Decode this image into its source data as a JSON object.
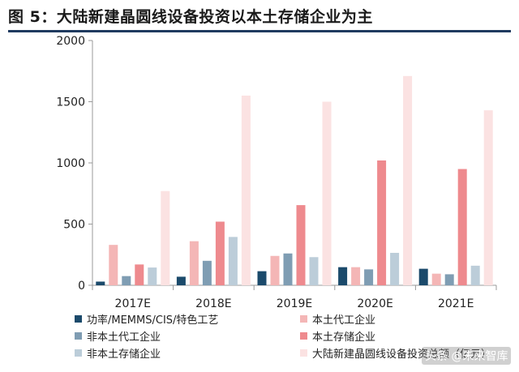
{
  "title": "图 5：大陆新建晶圆线设备投资以本土存储企业为主",
  "watermark": "头条 @未来智库",
  "chart_data": {
    "type": "bar",
    "categories": [
      "2017E",
      "2018E",
      "2019E",
      "2020E",
      "2021E"
    ],
    "ylim": [
      0,
      2000
    ],
    "yticks": [
      0,
      500,
      1000,
      1500,
      2000
    ],
    "grid": false,
    "legend_position": "bottom",
    "series": [
      {
        "name": "功率/MEMMS/CIS/特色工艺",
        "color": "#1b4a6b",
        "values": [
          30,
          70,
          115,
          148,
          135
        ]
      },
      {
        "name": "本土代工企业",
        "color": "#f4b6b6",
        "values": [
          330,
          360,
          240,
          148,
          95
        ]
      },
      {
        "name": "非本土代工企业",
        "color": "#7f9db3",
        "values": [
          75,
          200,
          260,
          130,
          90
        ]
      },
      {
        "name": "本土存储企业",
        "color": "#ee8a8e",
        "values": [
          170,
          520,
          655,
          1020,
          950
        ]
      },
      {
        "name": "非本土存储企业",
        "color": "#bccdd9",
        "values": [
          145,
          395,
          230,
          265,
          160
        ]
      },
      {
        "name": "大陆新建晶圆线设备投资总额（亿元）",
        "color": "#fbe2e2",
        "values": [
          770,
          1550,
          1500,
          1710,
          1430
        ]
      }
    ]
  }
}
